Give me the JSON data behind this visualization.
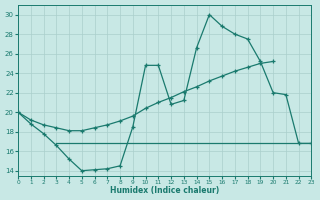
{
  "xlabel": "Humidex (Indice chaleur)",
  "bg_color": "#c8e8e5",
  "grid_color": "#aacfcc",
  "line_color": "#1a7a6e",
  "xlim": [
    0,
    23
  ],
  "ylim": [
    13.5,
    31
  ],
  "xticks": [
    0,
    1,
    2,
    3,
    4,
    5,
    6,
    7,
    8,
    9,
    10,
    11,
    12,
    13,
    14,
    15,
    16,
    17,
    18,
    19,
    20,
    21,
    22,
    23
  ],
  "yticks": [
    14,
    16,
    18,
    20,
    22,
    24,
    26,
    28,
    30
  ],
  "line1_x": [
    0,
    1,
    2,
    3,
    4,
    5,
    6,
    7,
    8,
    9,
    10,
    11,
    12,
    13,
    14,
    15,
    16,
    17,
    18,
    19,
    20,
    21,
    22,
    23
  ],
  "line1_y": [
    20.0,
    18.8,
    17.8,
    16.6,
    15.2,
    14.0,
    14.1,
    14.2,
    14.5,
    18.5,
    24.8,
    24.8,
    20.8,
    21.2,
    26.6,
    30.0,
    28.8,
    28.0,
    27.5,
    25.2,
    22.0,
    21.8,
    16.8,
    16.8
  ],
  "line2_x": [
    0,
    1,
    2,
    3,
    4,
    5,
    6,
    7,
    8,
    9,
    10,
    11,
    12,
    13,
    14,
    15,
    16,
    17,
    18,
    19,
    20
  ],
  "line2_y": [
    20.0,
    19.2,
    18.7,
    18.4,
    18.1,
    18.1,
    18.4,
    18.7,
    19.1,
    19.6,
    20.4,
    21.0,
    21.5,
    22.1,
    22.6,
    23.2,
    23.7,
    24.2,
    24.6,
    25.0,
    25.2
  ],
  "line3_x": [
    3,
    4,
    5,
    6,
    7,
    8,
    9,
    10,
    11,
    12,
    13,
    14,
    15,
    16,
    17,
    18,
    19,
    20,
    21,
    22,
    23
  ],
  "line3_y": [
    16.8,
    16.8,
    16.8,
    16.8,
    16.8,
    16.8,
    16.8,
    16.8,
    16.8,
    16.8,
    16.8,
    16.8,
    16.8,
    16.8,
    16.8,
    16.8,
    16.8,
    16.8,
    16.8,
    16.8,
    16.8
  ]
}
